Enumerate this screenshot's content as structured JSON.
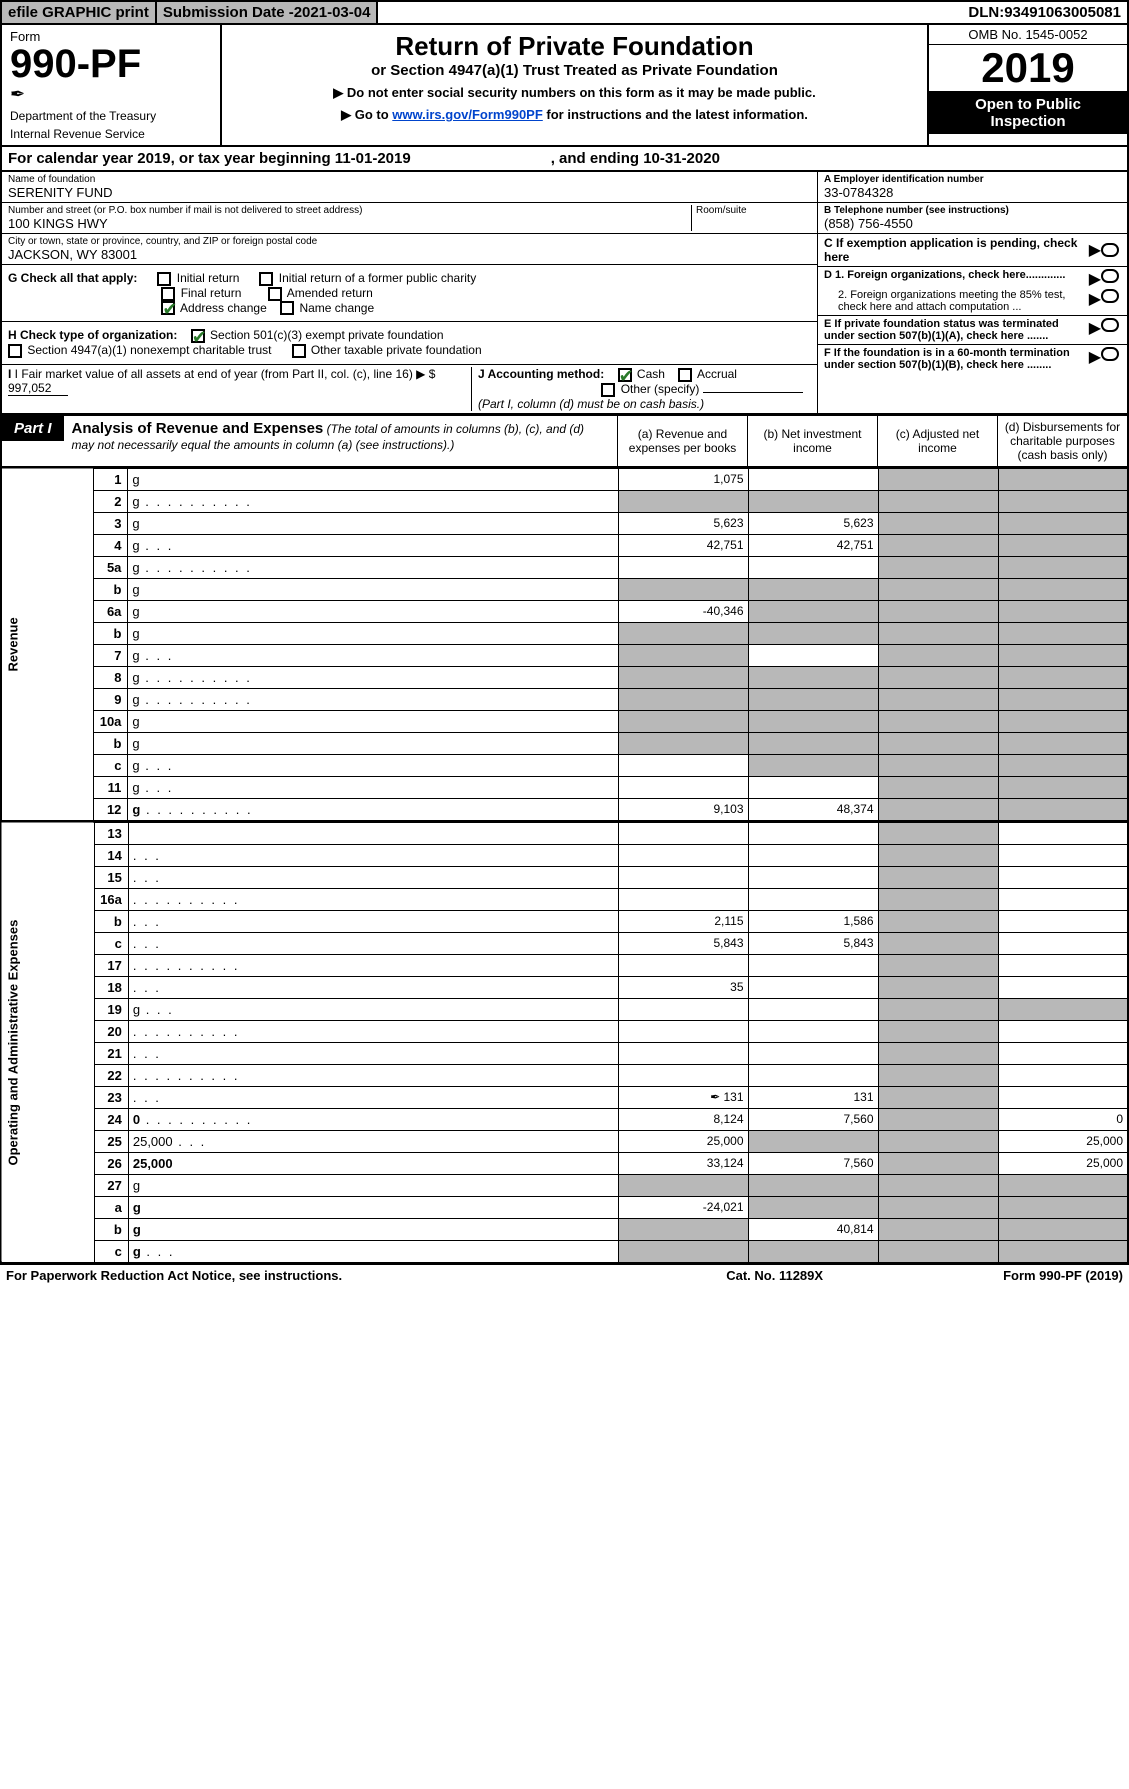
{
  "top": {
    "efile": "efile GRAPHIC print",
    "subdate_label": "Submission Date - ",
    "subdate": "2021-03-04",
    "dln_label": "DLN: ",
    "dln": "93491063005081"
  },
  "header": {
    "form_label": "Form",
    "form_no": "990-PF",
    "dept": "Department of the Treasury",
    "irs": "Internal Revenue Service",
    "title": "Return of Private Foundation",
    "subtitle": "or Section 4947(a)(1) Trust Treated as Private Foundation",
    "note1": "▶ Do not enter social security numbers on this form as it may be made public.",
    "note2a": "▶ Go to ",
    "note2link": "www.irs.gov/Form990PF",
    "note2b": " for instructions and the latest information.",
    "omb": "OMB No. 1545-0052",
    "year": "2019",
    "open1": "Open to Public",
    "open2": "Inspection"
  },
  "cal": {
    "text": "For calendar year 2019, or tax year beginning 11-01-2019",
    "ending": ", and ending 10-31-2020"
  },
  "info": {
    "name_lbl": "Name of foundation",
    "name": "SERENITY FUND",
    "addr_lbl": "Number and street (or P.O. box number if mail is not delivered to street address)",
    "addr": "100 KINGS HWY",
    "room_lbl": "Room/suite",
    "city_lbl": "City or town, state or province, country, and ZIP or foreign postal code",
    "city": "JACKSON, WY  83001",
    "a_lbl": "A Employer identification number",
    "a_val": "33-0784328",
    "b_lbl": "B Telephone number (see instructions)",
    "b_val": "(858) 756-4550",
    "c_lbl": "C If exemption application is pending, check here",
    "d1": "D 1. Foreign organizations, check here.............",
    "d2": "2. Foreign organizations meeting the 85% test, check here and attach computation ...",
    "e": "E  If private foundation status was terminated under section 507(b)(1)(A), check here .......",
    "f": "F  If the foundation is in a 60-month termination under section 507(b)(1)(B), check here ........"
  },
  "g": {
    "label": "G Check all that apply:",
    "initial": "Initial return",
    "initial_former": "Initial return of a former public charity",
    "final": "Final return",
    "amended": "Amended return",
    "address": "Address change",
    "name": "Name change"
  },
  "h": {
    "label": "H Check type of organization:",
    "s501": "Section 501(c)(3) exempt private foundation",
    "s4947": "Section 4947(a)(1) nonexempt charitable trust",
    "other": "Other taxable private foundation"
  },
  "i": {
    "label": "I Fair market value of all assets at end of year (from Part II, col. (c), line 16) ▶ $",
    "val": "997,052"
  },
  "j": {
    "label": "J Accounting method:",
    "cash": "Cash",
    "accrual": "Accrual",
    "other": "Other (specify)",
    "note": "(Part I, column (d) must be on cash basis.)"
  },
  "part1": {
    "label": "Part I",
    "title": "Analysis of Revenue and Expenses",
    "sub": " (The total of amounts in columns (b), (c), and (d) may not necessarily equal the amounts in column (a) (see instructions).)",
    "colA": "(a)   Revenue and expenses per books",
    "colB": "(b)  Net investment income",
    "colC": "(c)  Adjusted net income",
    "colD": "(d)  Disbursements for charitable purposes (cash basis only)"
  },
  "sections": {
    "revenue": "Revenue",
    "expenses": "Operating and Administrative Expenses"
  },
  "rows": [
    {
      "n": "1",
      "d": "g",
      "a": "1,075",
      "b": "",
      "c": "g"
    },
    {
      "n": "2",
      "d": "g",
      "dots": true,
      "a": "g",
      "b": "g",
      "c": "g"
    },
    {
      "n": "3",
      "d": "g",
      "a": "5,623",
      "b": "5,623",
      "c": ""
    },
    {
      "n": "4",
      "d": "g",
      "dots_s": true,
      "a": "42,751",
      "b": "42,751",
      "c": ""
    },
    {
      "n": "5a",
      "d": "g",
      "dots": true,
      "a": "",
      "b": "",
      "c": ""
    },
    {
      "n": "b",
      "d": "g",
      "a": "g",
      "b": "g",
      "c": "g"
    },
    {
      "n": "6a",
      "d": "g",
      "a": "-40,346",
      "b": "g",
      "c": "g"
    },
    {
      "n": "b",
      "d": "g",
      "a": "g",
      "b": "g",
      "c": "g"
    },
    {
      "n": "7",
      "d": "g",
      "dots_s": true,
      "a": "g",
      "b": "",
      "c": "g"
    },
    {
      "n": "8",
      "d": "g",
      "dots": true,
      "a": "g",
      "b": "g",
      "c": ""
    },
    {
      "n": "9",
      "d": "g",
      "dots": true,
      "a": "g",
      "b": "g",
      "c": ""
    },
    {
      "n": "10a",
      "d": "g",
      "a": "g",
      "b": "g",
      "c": "g"
    },
    {
      "n": "b",
      "d": "g",
      "a": "g",
      "b": "g",
      "c": "g"
    },
    {
      "n": "c",
      "d": "g",
      "dots_s": true,
      "a": "",
      "b": "g",
      "c": ""
    },
    {
      "n": "11",
      "d": "g",
      "dots_s": true,
      "a": "",
      "b": "",
      "c": ""
    },
    {
      "n": "12",
      "d": "g",
      "bold": true,
      "dots": true,
      "a": "9,103",
      "b": "48,374",
      "c": ""
    }
  ],
  "exp_rows": [
    {
      "n": "13",
      "d": "",
      "a": "",
      "b": "",
      "c": ""
    },
    {
      "n": "14",
      "d": "",
      "dots_s": true,
      "a": "",
      "b": "",
      "c": ""
    },
    {
      "n": "15",
      "d": "",
      "dots_s": true,
      "a": "",
      "b": "",
      "c": ""
    },
    {
      "n": "16a",
      "d": "",
      "dots": true,
      "a": "",
      "b": "",
      "c": ""
    },
    {
      "n": "b",
      "d": "",
      "dots_s": true,
      "a": "2,115",
      "b": "1,586",
      "c": ""
    },
    {
      "n": "c",
      "d": "",
      "dots_s": true,
      "a": "5,843",
      "b": "5,843",
      "c": ""
    },
    {
      "n": "17",
      "d": "",
      "dots": true,
      "a": "",
      "b": "",
      "c": ""
    },
    {
      "n": "18",
      "d": "",
      "dots_s": true,
      "a": "35",
      "b": "",
      "c": ""
    },
    {
      "n": "19",
      "d": "g",
      "dots_s": true,
      "a": "",
      "b": "",
      "c": ""
    },
    {
      "n": "20",
      "d": "",
      "dots": true,
      "a": "",
      "b": "",
      "c": ""
    },
    {
      "n": "21",
      "d": "",
      "dots_s": true,
      "a": "",
      "b": "",
      "c": ""
    },
    {
      "n": "22",
      "d": "",
      "dots": true,
      "a": "",
      "b": "",
      "c": ""
    },
    {
      "n": "23",
      "d": "",
      "dots_s": true,
      "icon": true,
      "a": "131",
      "b": "131",
      "c": ""
    },
    {
      "n": "24",
      "d": "0",
      "bold": true,
      "dots": true,
      "a": "8,124",
      "b": "7,560",
      "c": ""
    },
    {
      "n": "25",
      "d": "25,000",
      "dots_s": true,
      "a": "25,000",
      "b": "g",
      "c": "g"
    },
    {
      "n": "26",
      "d": "25,000",
      "bold": true,
      "a": "33,124",
      "b": "7,560",
      "c": ""
    },
    {
      "n": "27",
      "d": "g",
      "a": "g",
      "b": "g",
      "c": "g"
    },
    {
      "n": "a",
      "d": "g",
      "bold": true,
      "a": "-24,021",
      "b": "g",
      "c": "g"
    },
    {
      "n": "b",
      "d": "g",
      "bold": true,
      "a": "g",
      "b": "40,814",
      "c": "g"
    },
    {
      "n": "c",
      "d": "g",
      "bold": true,
      "dots_s": true,
      "a": "g",
      "b": "g",
      "c": ""
    }
  ],
  "footer": {
    "f1": "For Paperwork Reduction Act Notice, see instructions.",
    "f2": "Cat. No. 11289X",
    "f3": "Form 990-PF (2019)"
  }
}
